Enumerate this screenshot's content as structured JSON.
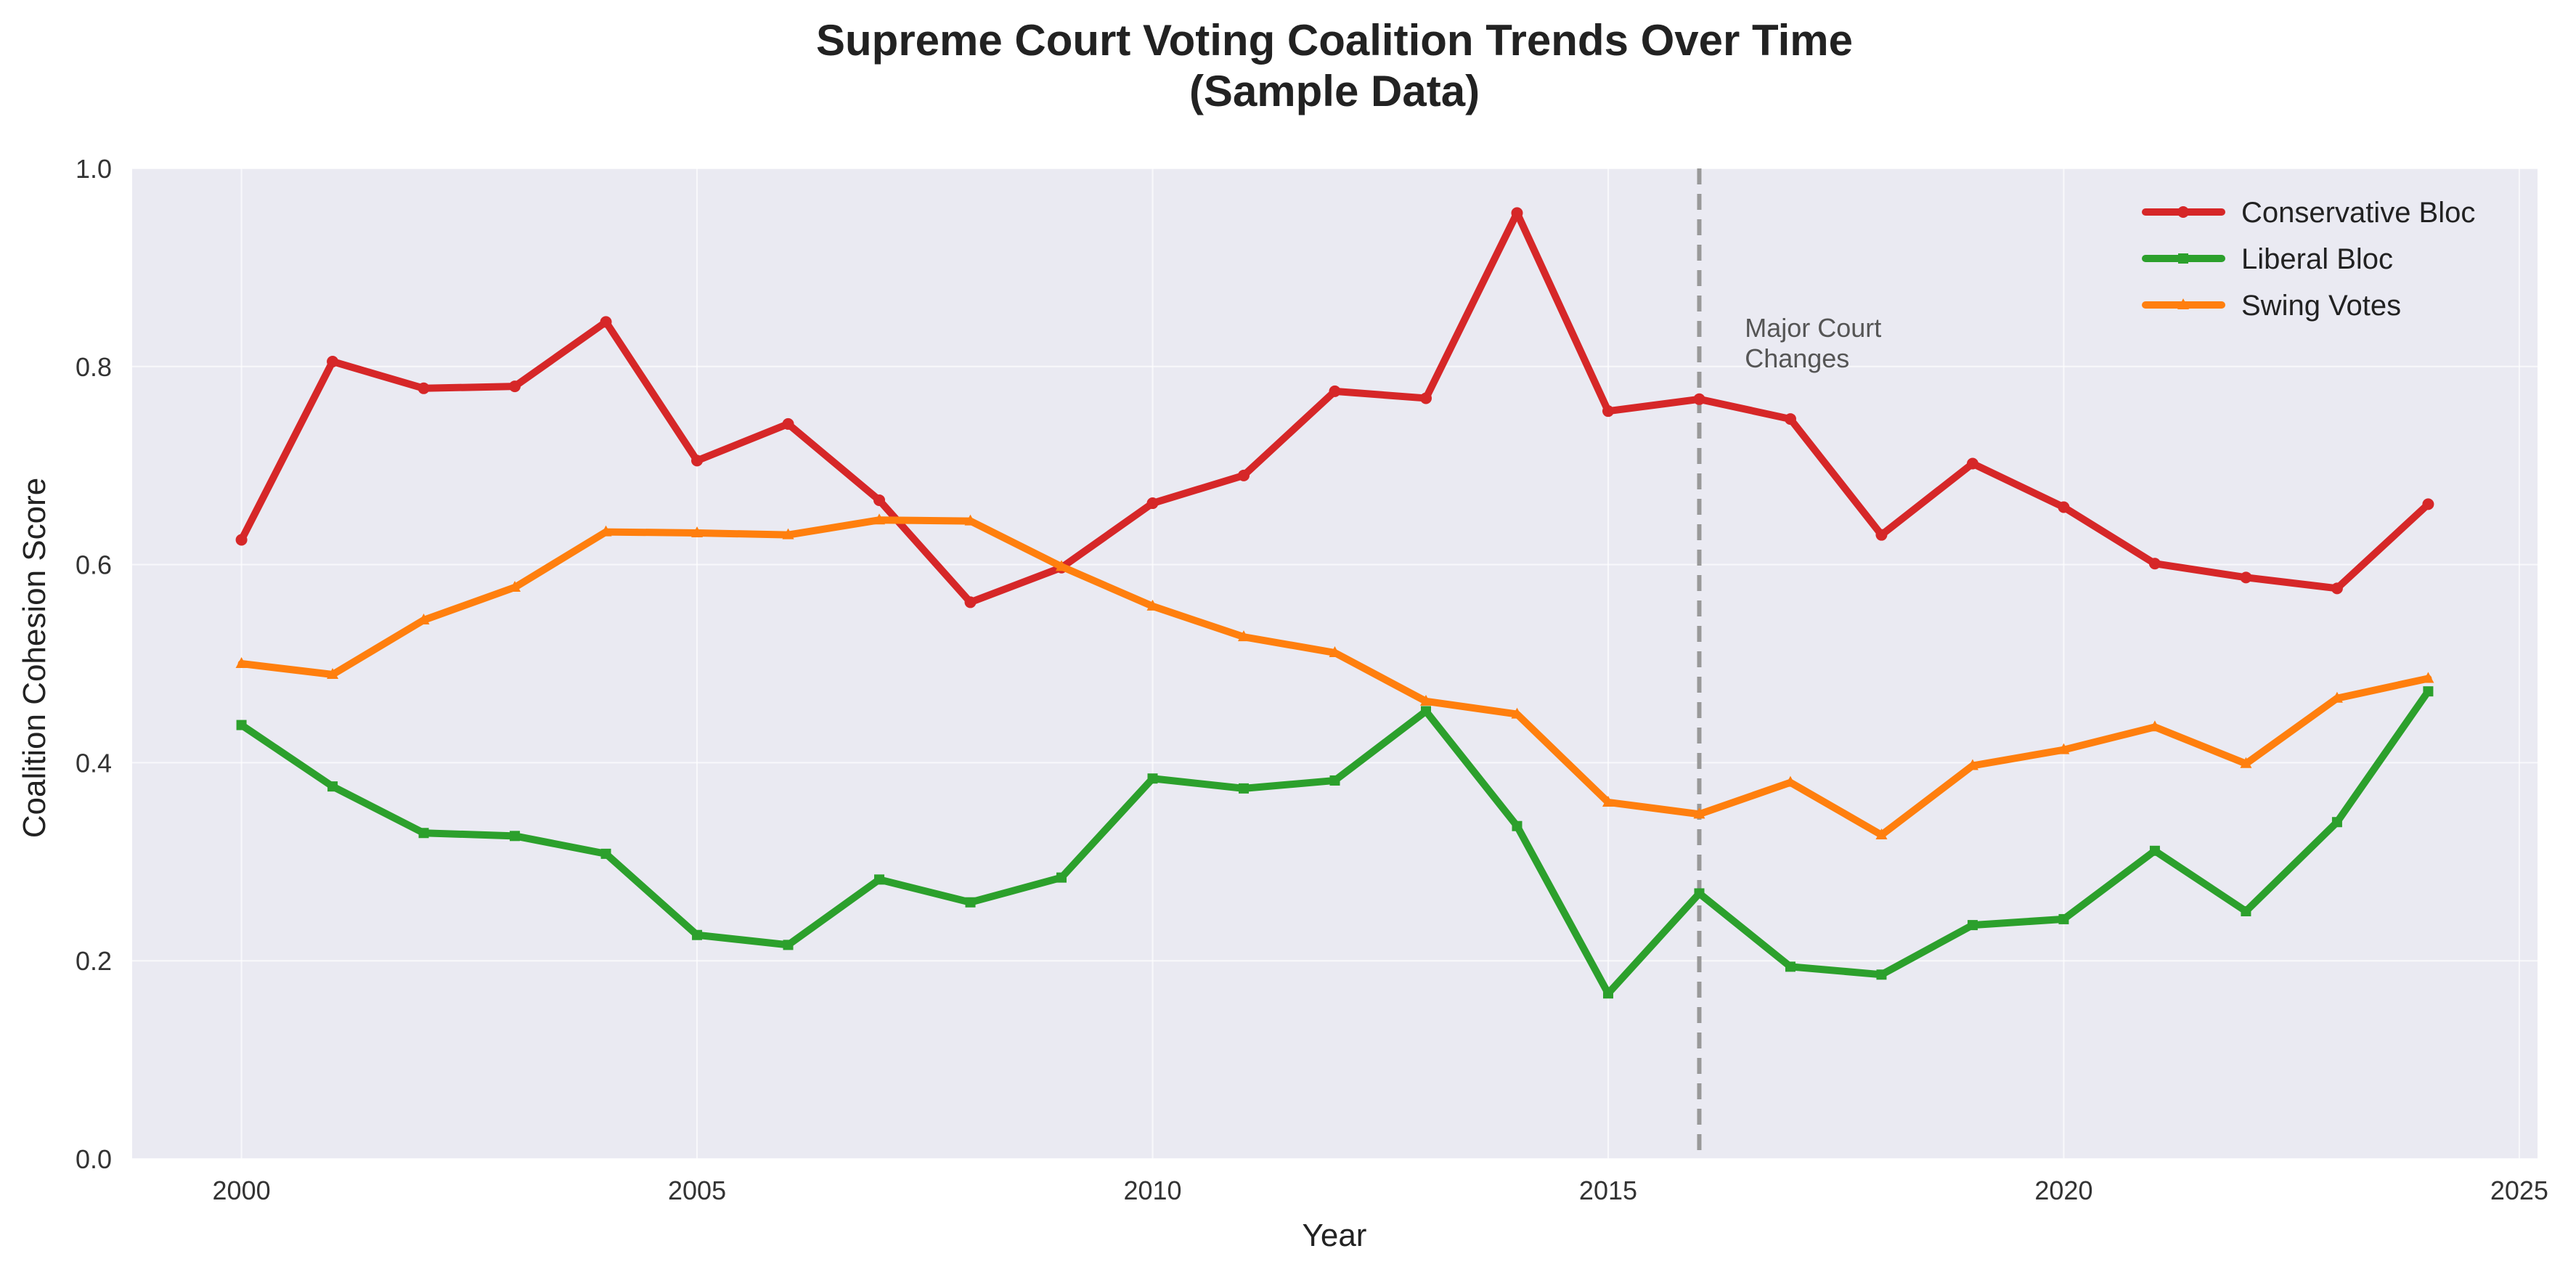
{
  "chart_data": {
    "type": "line",
    "title_lines": [
      "Supreme Court Voting Coalition Trends Over Time",
      "(Sample Data)"
    ],
    "xlabel": "Year",
    "ylabel": "Coalition Cohesion Score",
    "xlim": [
      1998.8,
      2025.2
    ],
    "ylim": [
      0,
      1.0
    ],
    "x_ticks": [
      2000,
      2005,
      2010,
      2015,
      2020,
      2025
    ],
    "y_ticks": [
      0.0,
      0.2,
      0.4,
      0.6,
      0.8,
      1.0
    ],
    "y_tick_labels": [
      "0.0",
      "0.2",
      "0.4",
      "0.6",
      "0.8",
      "1.0"
    ],
    "grid": true,
    "legend_position": "top-right",
    "x": [
      2000,
      2001,
      2002,
      2003,
      2004,
      2005,
      2006,
      2007,
      2008,
      2009,
      2010,
      2011,
      2012,
      2013,
      2014,
      2015,
      2016,
      2017,
      2018,
      2019,
      2020,
      2021,
      2022,
      2023,
      2024
    ],
    "series": [
      {
        "name": "Conservative Bloc",
        "color": "#d62728",
        "marker": "circle",
        "values": [
          0.625,
          0.805,
          0.778,
          0.78,
          0.845,
          0.705,
          0.742,
          0.665,
          0.562,
          0.597,
          0.662,
          0.69,
          0.775,
          0.768,
          0.955,
          0.755,
          0.767,
          0.747,
          0.63,
          0.702,
          0.658,
          0.601,
          0.587,
          0.576,
          0.661
        ]
      },
      {
        "name": "Liberal Bloc",
        "color": "#2ca02c",
        "marker": "square",
        "values": [
          0.438,
          0.376,
          0.329,
          0.326,
          0.308,
          0.226,
          0.216,
          0.282,
          0.259,
          0.284,
          0.384,
          0.374,
          0.382,
          0.452,
          0.336,
          0.167,
          0.268,
          0.194,
          0.186,
          0.236,
          0.242,
          0.311,
          0.25,
          0.34,
          0.472
        ]
      },
      {
        "name": "Swing Votes",
        "color": "#ff7f0e",
        "marker": "triangle",
        "values": [
          0.5,
          0.489,
          0.544,
          0.577,
          0.633,
          0.632,
          0.63,
          0.645,
          0.644,
          0.598,
          0.558,
          0.527,
          0.511,
          0.462,
          0.449,
          0.36,
          0.348,
          0.38,
          0.327,
          0.397,
          0.413,
          0.436,
          0.399,
          0.465,
          0.485
        ]
      }
    ],
    "annotations": [
      {
        "type": "vline",
        "x": 2016,
        "color": "#999999",
        "style": "dashed"
      },
      {
        "type": "text",
        "text_lines": [
          "Major Court",
          "Changes"
        ],
        "x": 2016.5,
        "y": 0.83
      }
    ]
  }
}
